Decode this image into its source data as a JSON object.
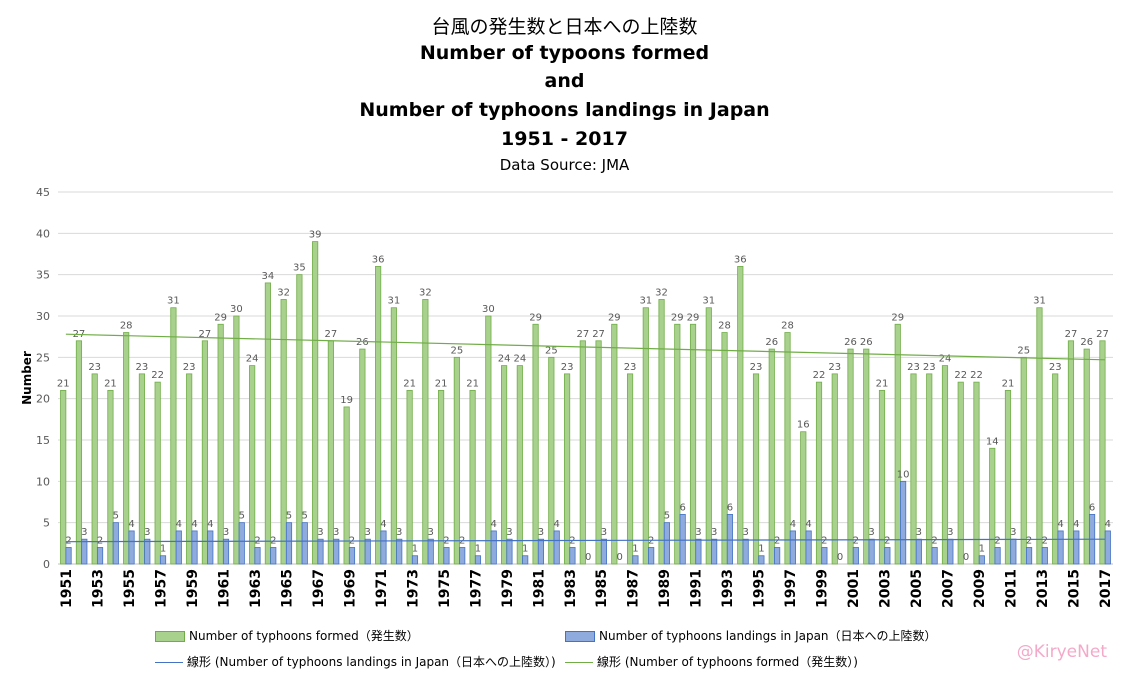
{
  "title": {
    "line1": "台風の発生数と日本への上陸数",
    "line2": "Number of typoons formed",
    "line3": "and",
    "line4": "Number of typhoons landings in Japan",
    "line5": "1951 - 2017",
    "source": "Data Source: JMA"
  },
  "watermark": "@KiryeNet",
  "colors": {
    "formed_fill": "#a9d18e",
    "formed_stroke": "#70ad47",
    "landing_fill": "#8faadc",
    "landing_stroke": "#4472c4",
    "trend_formed": "#70ad47",
    "trend_landing": "#4472c4",
    "grid": "#d9d9d9",
    "label": "#595959"
  },
  "chart_data": {
    "type": "bar",
    "ylabel": "Number",
    "xlabel": "",
    "ylim": [
      0,
      45
    ],
    "yticks": [
      0,
      5,
      10,
      15,
      20,
      25,
      30,
      35,
      40,
      45
    ],
    "grid": true,
    "legend_position": "bottom",
    "categories": [
      "1951",
      "1952",
      "1953",
      "1954",
      "1955",
      "1956",
      "1957",
      "1958",
      "1959",
      "1960",
      "1961",
      "1962",
      "1963",
      "1964",
      "1965",
      "1966",
      "1967",
      "1968",
      "1969",
      "1970",
      "1971",
      "1972",
      "1973",
      "1974",
      "1975",
      "1976",
      "1977",
      "1978",
      "1979",
      "1980",
      "1981",
      "1982",
      "1983",
      "1984",
      "1985",
      "1986",
      "1987",
      "1988",
      "1989",
      "1990",
      "1991",
      "1992",
      "1993",
      "1994",
      "1995",
      "1996",
      "1997",
      "1998",
      "1999",
      "2000",
      "2001",
      "2002",
      "2003",
      "2004",
      "2005",
      "2006",
      "2007",
      "2008",
      "2009",
      "2010",
      "2011",
      "2012",
      "2013",
      "2014",
      "2015",
      "2016",
      "2017"
    ],
    "tick_labels": [
      "1951",
      "1953",
      "1955",
      "1957",
      "1959",
      "1961",
      "1963",
      "1965",
      "1967",
      "1969",
      "1971",
      "1973",
      "1975",
      "1977",
      "1979",
      "1981",
      "1983",
      "1985",
      "1987",
      "1989",
      "1991",
      "1993",
      "1995",
      "1997",
      "1999",
      "2001",
      "2003",
      "2005",
      "2007",
      "2009",
      "2011",
      "2013",
      "2015",
      "2017"
    ],
    "series": [
      {
        "name": "Number of typhoons formed（発生数）",
        "values": [
          21,
          27,
          23,
          21,
          28,
          23,
          22,
          31,
          23,
          27,
          29,
          30,
          24,
          34,
          32,
          35,
          39,
          27,
          19,
          26,
          36,
          31,
          21,
          32,
          21,
          25,
          21,
          30,
          24,
          24,
          29,
          25,
          23,
          27,
          27,
          29,
          23,
          31,
          32,
          29,
          29,
          31,
          28,
          36,
          23,
          26,
          28,
          16,
          22,
          23,
          26,
          26,
          21,
          29,
          23,
          23,
          24,
          22,
          22,
          14,
          21,
          25,
          31,
          23,
          27,
          26,
          27
        ]
      },
      {
        "name": "Number of typhoons landings in Japan（日本への上陸数）",
        "values": [
          2,
          3,
          2,
          5,
          4,
          3,
          1,
          4,
          4,
          4,
          3,
          5,
          2,
          2,
          5,
          5,
          3,
          3,
          2,
          3,
          4,
          3,
          1,
          3,
          2,
          2,
          1,
          4,
          3,
          1,
          3,
          4,
          2,
          0,
          3,
          0,
          1,
          2,
          5,
          6,
          3,
          3,
          6,
          3,
          1,
          2,
          4,
          4,
          2,
          0,
          2,
          3,
          2,
          10,
          3,
          2,
          3,
          0,
          1,
          2,
          3,
          2,
          2,
          4,
          4,
          6,
          4
        ]
      }
    ],
    "trendlines": [
      {
        "name": "線形 (Number of typhoons landings in Japan（日本への上陸数）)",
        "start": 2.7,
        "end": 3.0
      },
      {
        "name": "線形 (Number of typhoons formed（発生数）)",
        "start": 27.8,
        "end": 24.7
      }
    ]
  }
}
